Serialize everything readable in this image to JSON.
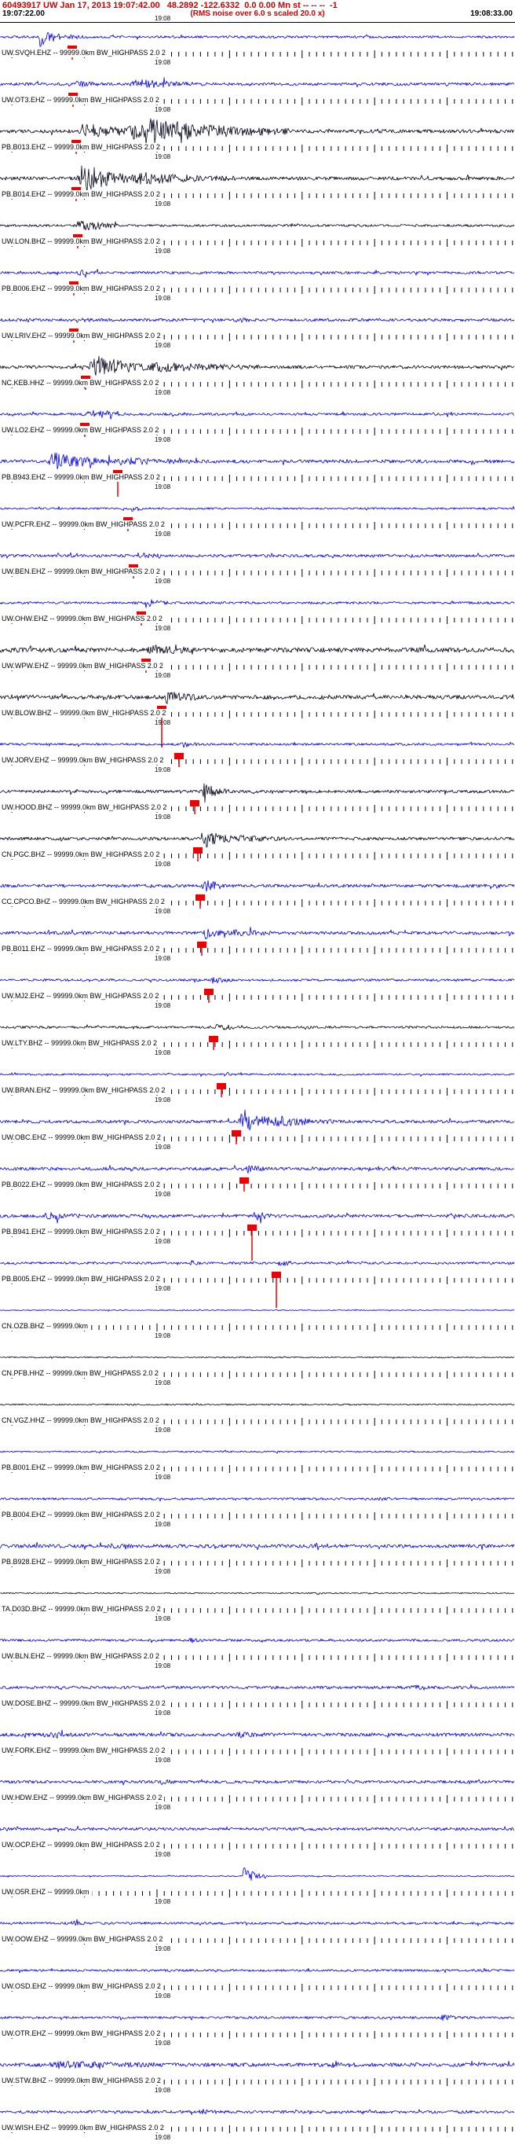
{
  "header": {
    "title": "60493917 UW Jan 17, 2013 19:07:42.00   48.2892 -122.6332  0.0 0.00 Mn st -- -- --  -1",
    "window_start": "19:07:22.00",
    "window_end": "19:08:33.00",
    "rms_note": "(RMS noise over 6.0 s scaled 20.0 x)"
  },
  "tick_label": "19:08",
  "colors": {
    "blue": "#0000dd",
    "black": "#000018",
    "pick": "#ee0000",
    "header_red": "#cc0000"
  },
  "traces": [
    {
      "label": "UW.SVQH.EHZ -- 99999.0km BW_HIGHPASS 2.0 2",
      "color": "blue",
      "noise": 1.5,
      "bursts": [
        [
          48,
          68,
          14
        ],
        [
          68,
          115,
          3
        ]
      ],
      "pick": 92,
      "stem": 10
    },
    {
      "label": "UW.OT3.EHZ -- 99999.0km BW_HIGHPASS 2.0 2",
      "color": "blue",
      "noise": 1.8,
      "bursts": [
        [
          95,
          130,
          3
        ],
        [
          165,
          245,
          6
        ]
      ],
      "pick": 93,
      "stem": 10
    },
    {
      "label": "PB.B013.EHZ -- 99999.0km BW_HIGHPASS 2.0 2",
      "color": "black",
      "noise": 2.2,
      "bursts": [
        [
          100,
          200,
          8
        ],
        [
          160,
          370,
          14
        ]
      ],
      "pick": 97,
      "stem": 10
    },
    {
      "label": "PB.B014.EHZ -- 99999.0km BW_HIGHPASS 2.0 2",
      "color": "black",
      "noise": 2.2,
      "bursts": [
        [
          98,
          180,
          15
        ],
        [
          170,
          300,
          6
        ]
      ],
      "pick": 97,
      "stem": 10
    },
    {
      "label": "UW.LON.BHZ -- 99999.0km BW_HIGHPASS 2.0 2",
      "color": "black",
      "noise": 1.5,
      "bursts": [
        [
          98,
          150,
          8
        ]
      ],
      "pick": 99,
      "stem": 10
    },
    {
      "label": "PB.B006.EHZ -- 99999.0km BW_HIGHPASS 2.0 2",
      "color": "blue",
      "noise": 1.6,
      "bursts": [
        [
          96,
          125,
          3
        ]
      ],
      "pick": 94,
      "stem": 10
    },
    {
      "label": "UW.LRIV.EHZ -- 99999.0km BW_HIGHPASS 2.0 2",
      "color": "blue",
      "noise": 1.8,
      "bursts": [
        [
          96,
          122,
          3
        ],
        [
          300,
          322,
          2.5
        ]
      ],
      "pick": 94,
      "stem": 10
    },
    {
      "label": "NC.KEB.HHZ -- 99999.0km BW_HIGHPASS 2.0 2",
      "color": "black",
      "noise": 2.0,
      "bursts": [
        [
          112,
          200,
          14
        ],
        [
          190,
          330,
          5
        ]
      ],
      "pick": 109,
      "stem": 10
    },
    {
      "label": "UW.LO2.EHZ -- 99999.0km BW_HIGHPASS 2.0 2",
      "color": "blue",
      "noise": 1.6,
      "bursts": [
        [
          108,
          155,
          6
        ]
      ],
      "pick": 108,
      "stem": 10
    },
    {
      "label": "PB.B943.EHZ -- 99999.0km BW_HIGHPASS 2.0 2",
      "color": "blue",
      "noise": 2.2,
      "bursts": [
        [
          60,
          140,
          12
        ],
        [
          130,
          250,
          4
        ]
      ],
      "pick": 150,
      "stem": 26
    },
    {
      "label": "UW.PCFR.EHZ -- 99999.0km BW_HIGHPASS 2.0 2",
      "color": "blue",
      "noise": 1.2,
      "bursts": [
        [
          165,
          192,
          3
        ]
      ],
      "pick": 163,
      "stem": 10
    },
    {
      "label": "UW.BEN.EHZ -- 99999.0km BW_HIGHPASS 2.0 2",
      "color": "blue",
      "noise": 1.8,
      "bursts": [
        [
          172,
          205,
          3.5
        ]
      ],
      "pick": 170,
      "stem": 10
    },
    {
      "label": "UW.OHW.EHZ -- 99999.0km BW_HIGHPASS 2.0 2",
      "color": "blue",
      "noise": 1.5,
      "bursts": [
        [
          182,
          215,
          5
        ]
      ],
      "pick": 180,
      "stem": 10
    },
    {
      "label": "UW.WPW.EHZ -- 99999.0km BW_HIGHPASS 2.0 2",
      "color": "black",
      "noise": 3.0,
      "bursts": [
        [
          187,
          235,
          6
        ]
      ],
      "pick": 186,
      "stem": 10
    },
    {
      "label": "UW.BLOW.BHZ -- 99999.0km BW_HIGHPASS 2.0 2",
      "color": "black",
      "noise": 2.5,
      "bursts": [
        [
          207,
          252,
          7
        ]
      ],
      "pick": 206,
      "stem": 45
    },
    {
      "label": "UW.JORV.EHZ -- 99999.0km BW_HIGHPASS 2.0 2",
      "color": "blue",
      "noise": 1.5,
      "bursts": [
        [
          230,
          256,
          3
        ]
      ],
      "pick": 228,
      "stem": 10
    },
    {
      "label": "UW.HOOD.BHZ -- 99999.0km BW_HIGHPASS 2.0 2",
      "color": "black",
      "noise": 1.8,
      "bursts": [
        [
          255,
          292,
          9
        ]
      ],
      "pick": 248,
      "stem": 10
    },
    {
      "label": "CN.PGC.BHZ -- 99999.0km BW_HIGHPASS 2.0 2",
      "color": "black",
      "noise": 2.0,
      "bursts": [
        [
          256,
          300,
          10
        ],
        [
          300,
          362,
          3
        ]
      ],
      "pick": 252,
      "stem": 10
    },
    {
      "label": "CC.CPCO.BHZ -- 99999.0km BW_HIGHPASS 2.0 2",
      "color": "blue",
      "noise": 2.0,
      "bursts": [
        [
          257,
          286,
          9
        ]
      ],
      "pick": 255,
      "stem": 10
    },
    {
      "label": "PB.B011.EHZ -- 99999.0km BW_HIGHPASS 2.0 2",
      "color": "blue",
      "noise": 2.0,
      "bursts": [
        [
          258,
          292,
          6
        ],
        [
          290,
          360,
          3
        ]
      ],
      "pick": 257,
      "stem": 10
    },
    {
      "label": "UW.MJ2.EHZ -- 99999.0km BW_HIGHPASS 2.0 2",
      "color": "blue",
      "noise": 1.5,
      "bursts": [
        [
          268,
          296,
          3.5
        ]
      ],
      "pick": 266,
      "stem": 10
    },
    {
      "label": "UW.LTY.BHZ -- 99999.0km BW_HIGHPASS 2.0 2",
      "color": "black",
      "noise": 1.5,
      "bursts": [
        [
          274,
          305,
          4
        ]
      ],
      "pick": 272,
      "stem": 10
    },
    {
      "label": "UW.BRAN.EHZ -- 99999.0km BW_HIGHPASS 2.0 2",
      "color": "blue",
      "noise": 1.2,
      "bursts": [
        [
          284,
          306,
          2.5
        ]
      ],
      "pick": 282,
      "stem": 10
    },
    {
      "label": "UW.OBC.EHZ -- 99999.0km BW_HIGHPASS 2.0 2",
      "color": "blue",
      "noise": 2.0,
      "bursts": [
        [
          303,
          360,
          14
        ],
        [
          350,
          430,
          5
        ]
      ],
      "pick": 301,
      "stem": 10
    },
    {
      "label": "PB.B022.EHZ -- 99999.0km BW_HIGHPASS 2.0 2",
      "color": "blue",
      "noise": 2.0,
      "bursts": [
        [
          313,
          336,
          4
        ]
      ],
      "pick": 311,
      "stem": 10
    },
    {
      "label": "PB.B941.EHZ -- 99999.0km BW_HIGHPASS 2.0 2",
      "color": "blue",
      "noise": 2.0,
      "bursts": [
        [
          55,
          100,
          4
        ],
        [
          322,
          350,
          5
        ]
      ],
      "pick": 321,
      "stem": 38
    },
    {
      "label": "PB.B005.EHZ -- 99999.0km BW_HIGHPASS 2.0 2",
      "color": "blue",
      "noise": 1.5,
      "bursts": [
        [
          240,
          262,
          2.5
        ],
        [
          354,
          376,
          3.5
        ]
      ],
      "pick": 352,
      "stem": 38
    },
    {
      "label": "CN.OZB.BHZ -- 99999.0km",
      "color": "blue",
      "noise": 0.6,
      "bursts": [],
      "pick": null,
      "stem": 0
    },
    {
      "label": "CN.PFB.HHZ -- 99999.0km BW_HIGHPASS 2.0 2",
      "color": "black",
      "noise": 0.8,
      "bursts": [],
      "pick": null,
      "stem": 0
    },
    {
      "label": "CN.VGZ.HHZ -- 99999.0km BW_HIGHPASS 2.0 2",
      "color": "black",
      "noise": 0.9,
      "bursts": [],
      "pick": null,
      "stem": 0
    },
    {
      "label": "PB.B001.EHZ -- 99999.0km BW_HIGHPASS 2.0 2",
      "color": "blue",
      "noise": 1.0,
      "bursts": [],
      "pick": null,
      "stem": 0
    },
    {
      "label": "PB.B004.EHZ -- 99999.0km BW_HIGHPASS 2.0 2",
      "color": "blue",
      "noise": 1.4,
      "bursts": [
        [
          480,
          502,
          2
        ]
      ],
      "pick": null,
      "stem": 0
    },
    {
      "label": "PB.B928.EHZ -- 99999.0km BW_HIGHPASS 2.0 2",
      "color": "blue",
      "noise": 2.2,
      "bursts": [
        [
          140,
          172,
          2.5
        ],
        [
          400,
          432,
          2.5
        ]
      ],
      "pick": null,
      "stem": 0
    },
    {
      "label": "TA.D03D.BHZ -- 99999.0km BW_HIGHPASS 2.0 2",
      "color": "black",
      "noise": 0.8,
      "bursts": [],
      "pick": null,
      "stem": 0
    },
    {
      "label": "UW.BLN.EHZ -- 99999.0km BW_HIGHPASS 2.0 2",
      "color": "blue",
      "noise": 1.5,
      "bursts": [
        [
          240,
          262,
          2
        ]
      ],
      "pick": null,
      "stem": 0
    },
    {
      "label": "UW.DOSE.BHZ -- 99999.0km BW_HIGHPASS 2.0 2",
      "color": "blue",
      "noise": 1.8,
      "bursts": [
        [
          520,
          546,
          2.5
        ]
      ],
      "pick": null,
      "stem": 0
    },
    {
      "label": "UW.FORK.EHZ -- 99999.0km BW_HIGHPASS 2.0 2",
      "color": "blue",
      "noise": 2.2,
      "bursts": [
        [
          60,
          92,
          2.5
        ],
        [
          300,
          332,
          2.5
        ]
      ],
      "pick": null,
      "stem": 0
    },
    {
      "label": "UW.HDW.EHZ -- 99999.0km BW_HIGHPASS 2.0 2",
      "color": "blue",
      "noise": 1.8,
      "bursts": [
        [
          200,
          226,
          2.5
        ]
      ],
      "pick": null,
      "stem": 0
    },
    {
      "label": "UW.OCP.EHZ -- 99999.0km BW_HIGHPASS 2.0 2",
      "color": "blue",
      "noise": 1.8,
      "bursts": [],
      "pick": null,
      "stem": 0
    },
    {
      "label": "UW.O5R.EHZ -- 99999.0km",
      "color": "blue",
      "noise": 0.8,
      "bursts": [
        [
          306,
          338,
          13
        ]
      ],
      "pick": null,
      "stem": 0
    },
    {
      "label": "UW.OOW.EHZ -- 99999.0km BW_HIGHPASS 2.0 2",
      "color": "blue",
      "noise": 1.5,
      "bursts": [
        [
          90,
          112,
          2
        ]
      ],
      "pick": null,
      "stem": 0
    },
    {
      "label": "UW.OSD.EHZ -- 99999.0km BW_HIGHPASS 2.0 2",
      "color": "blue",
      "noise": 1.4,
      "bursts": [],
      "pick": null,
      "stem": 0
    },
    {
      "label": "UW.OTR.EHZ -- 99999.0km BW_HIGHPASS 2.0 2",
      "color": "blue",
      "noise": 1.5,
      "bursts": [
        [
          560,
          592,
          2.5
        ]
      ],
      "pick": null,
      "stem": 0
    },
    {
      "label": "UW.STW.BHZ -- 99999.0km BW_HIGHPASS 2.0 2",
      "color": "blue",
      "noise": 2.4,
      "bursts": [
        [
          60,
          200,
          3
        ],
        [
          420,
          452,
          2.5
        ]
      ],
      "pick": null,
      "stem": 0
    },
    {
      "label": "UW.WISH.EHZ -- 99999.0km BW_HIGHPASS 2.0 2",
      "color": "blue",
      "noise": 1.8,
      "bursts": [
        [
          250,
          282,
          2.5
        ]
      ],
      "pick": null,
      "stem": 0
    }
  ]
}
